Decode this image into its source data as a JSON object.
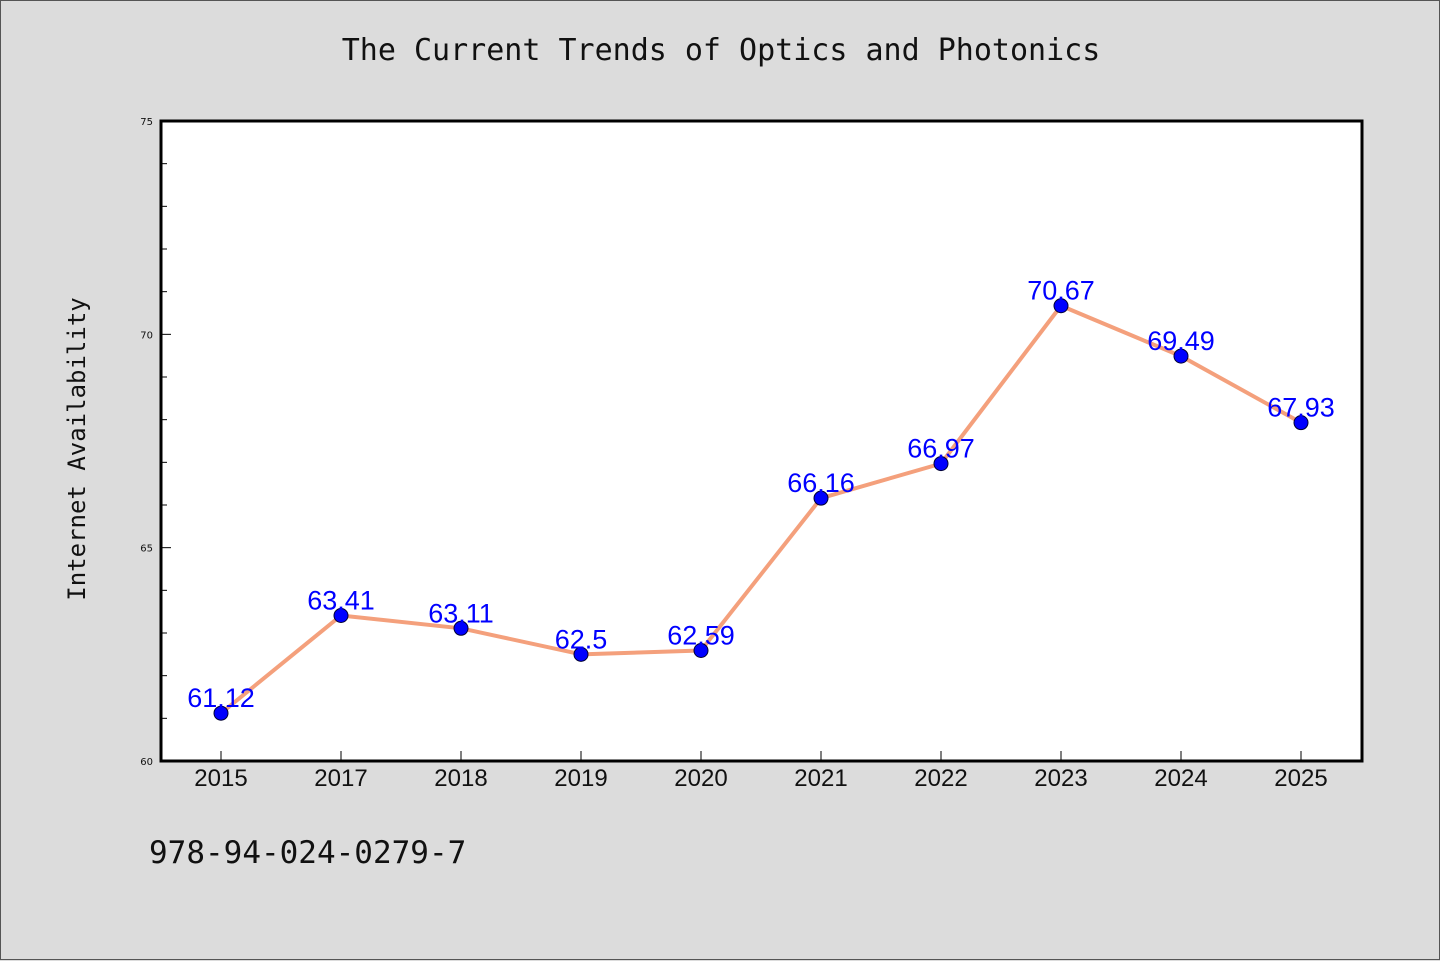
{
  "chart_data": {
    "type": "line",
    "title": "The Current Trends of Optics and Photonics",
    "xlabel": "",
    "ylabel": "Internet Availability",
    "categories": [
      "2015",
      "2017",
      "2018",
      "2019",
      "2020",
      "2021",
      "2022",
      "2023",
      "2024",
      "2025"
    ],
    "values": [
      61.12,
      63.41,
      63.11,
      62.5,
      62.59,
      66.16,
      66.97,
      70.67,
      69.49,
      67.93
    ],
    "data_labels": [
      "61.12",
      "63.41",
      "63.11",
      "62.5",
      "62.59",
      "66.16",
      "66.97",
      "70.67",
      "69.49",
      "67.93"
    ],
    "ylim": [
      60,
      75
    ],
    "y_ticks": [
      60,
      65,
      70,
      75
    ],
    "grid": false,
    "line_color": "#f4a07c",
    "marker_color": "#0000ff",
    "label_color": "#0000ff",
    "background": "#dcdcdc",
    "plot_background": "#ffffff"
  },
  "footer": {
    "isbn": "978-94-024-0279-7"
  }
}
